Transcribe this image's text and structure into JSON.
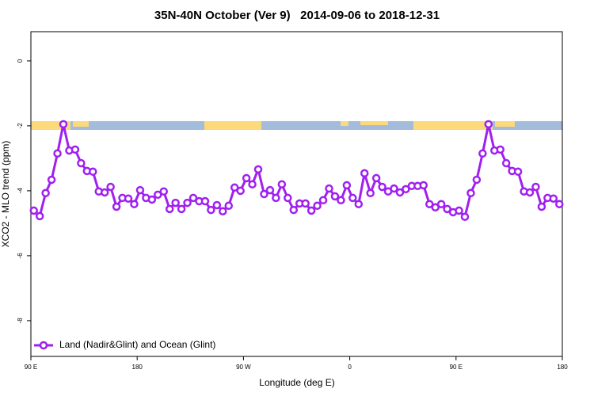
{
  "chart_data": {
    "type": "line",
    "title": "35N-40N October (Ver 9)   2014-09-06 to 2018-12-31",
    "x_label": "Longitude (deg E)",
    "y_label": "XCO2 - MLO trend (ppm)",
    "legend_position": "bottomleft",
    "xlim": [
      90,
      540
    ],
    "ylim": [
      -9.1,
      0.9
    ],
    "xticks": [
      {
        "value": 90,
        "label": "90 E"
      },
      180,
      {
        "value": 270,
        "label": "90 W"
      },
      {
        "value": 360,
        "label": "0"
      },
      {
        "value": 450,
        "label": "90 E"
      },
      {
        "value": 540,
        "label": "180"
      }
    ],
    "yticks": [
      0,
      -2,
      -4,
      -6,
      -8
    ],
    "x": [
      92.5,
      97.5,
      102.5,
      107.5,
      112.5,
      117.5,
      122.5,
      127.5,
      132.5,
      137.5,
      142.5,
      147.5,
      152.5,
      157.5,
      162.5,
      167.5,
      172.5,
      177.5,
      182.5,
      187.5,
      192.5,
      197.5,
      202.5,
      207.5,
      212.5,
      217.5,
      222.5,
      227.5,
      232.5,
      237.5,
      242.5,
      247.5,
      252.5,
      257.5,
      262.5,
      267.5,
      272.5,
      277.5,
      282.5,
      287.5,
      292.5,
      297.5,
      302.5,
      307.5,
      312.5,
      317.5,
      322.5,
      327.5,
      332.5,
      337.5,
      342.5,
      347.5,
      352.5,
      357.5,
      362.5,
      367.5,
      372.5,
      377.5,
      382.5,
      387.5,
      392.5,
      397.5,
      402.5,
      407.5,
      412.5,
      417.5,
      422.5,
      427.5,
      432.5,
      437.5,
      442.5,
      447.5,
      452.5,
      457.5,
      462.5,
      467.5,
      472.5,
      477.5,
      482.5,
      487.5,
      492.5,
      497.5,
      502.5,
      507.5,
      512.5,
      517.5,
      522.5,
      527.5,
      532.5,
      537.5
    ],
    "series": [
      {
        "name": "Land (Nadir&Glint) and Ocean (Glint)",
        "color": "#a020f0",
        "values": [
          -4.61,
          -4.78,
          -4.07,
          -3.66,
          -2.85,
          -1.95,
          -2.76,
          -2.73,
          -3.15,
          -3.39,
          -3.41,
          -4.02,
          -4.05,
          -3.88,
          -4.49,
          -4.22,
          -4.24,
          -4.41,
          -3.98,
          -4.22,
          -4.27,
          -4.12,
          -4.02,
          -4.56,
          -4.37,
          -4.56,
          -4.37,
          -4.22,
          -4.32,
          -4.32,
          -4.59,
          -4.44,
          -4.63,
          -4.46,
          -3.9,
          -4.0,
          -3.61,
          -3.8,
          -3.34,
          -4.1,
          -3.98,
          -4.22,
          -3.8,
          -4.22,
          -4.59,
          -4.39,
          -4.39,
          -4.61,
          -4.46,
          -4.29,
          -3.93,
          -4.17,
          -4.29,
          -3.83,
          -4.22,
          -4.41,
          -3.46,
          -4.07,
          -3.61,
          -3.88,
          -4.02,
          -3.93,
          -4.05,
          -3.95,
          -3.85,
          -3.85,
          -3.83,
          -4.41,
          -4.51,
          -4.41,
          -4.56,
          -4.66,
          -4.61,
          -4.8,
          -4.07,
          -3.66,
          -2.85,
          -1.95,
          -2.76,
          -2.73,
          -3.15,
          -3.39,
          -3.41,
          -4.02,
          -4.05,
          -3.88,
          -4.49,
          -4.22,
          -4.24,
          -4.41
        ]
      }
    ]
  }
}
